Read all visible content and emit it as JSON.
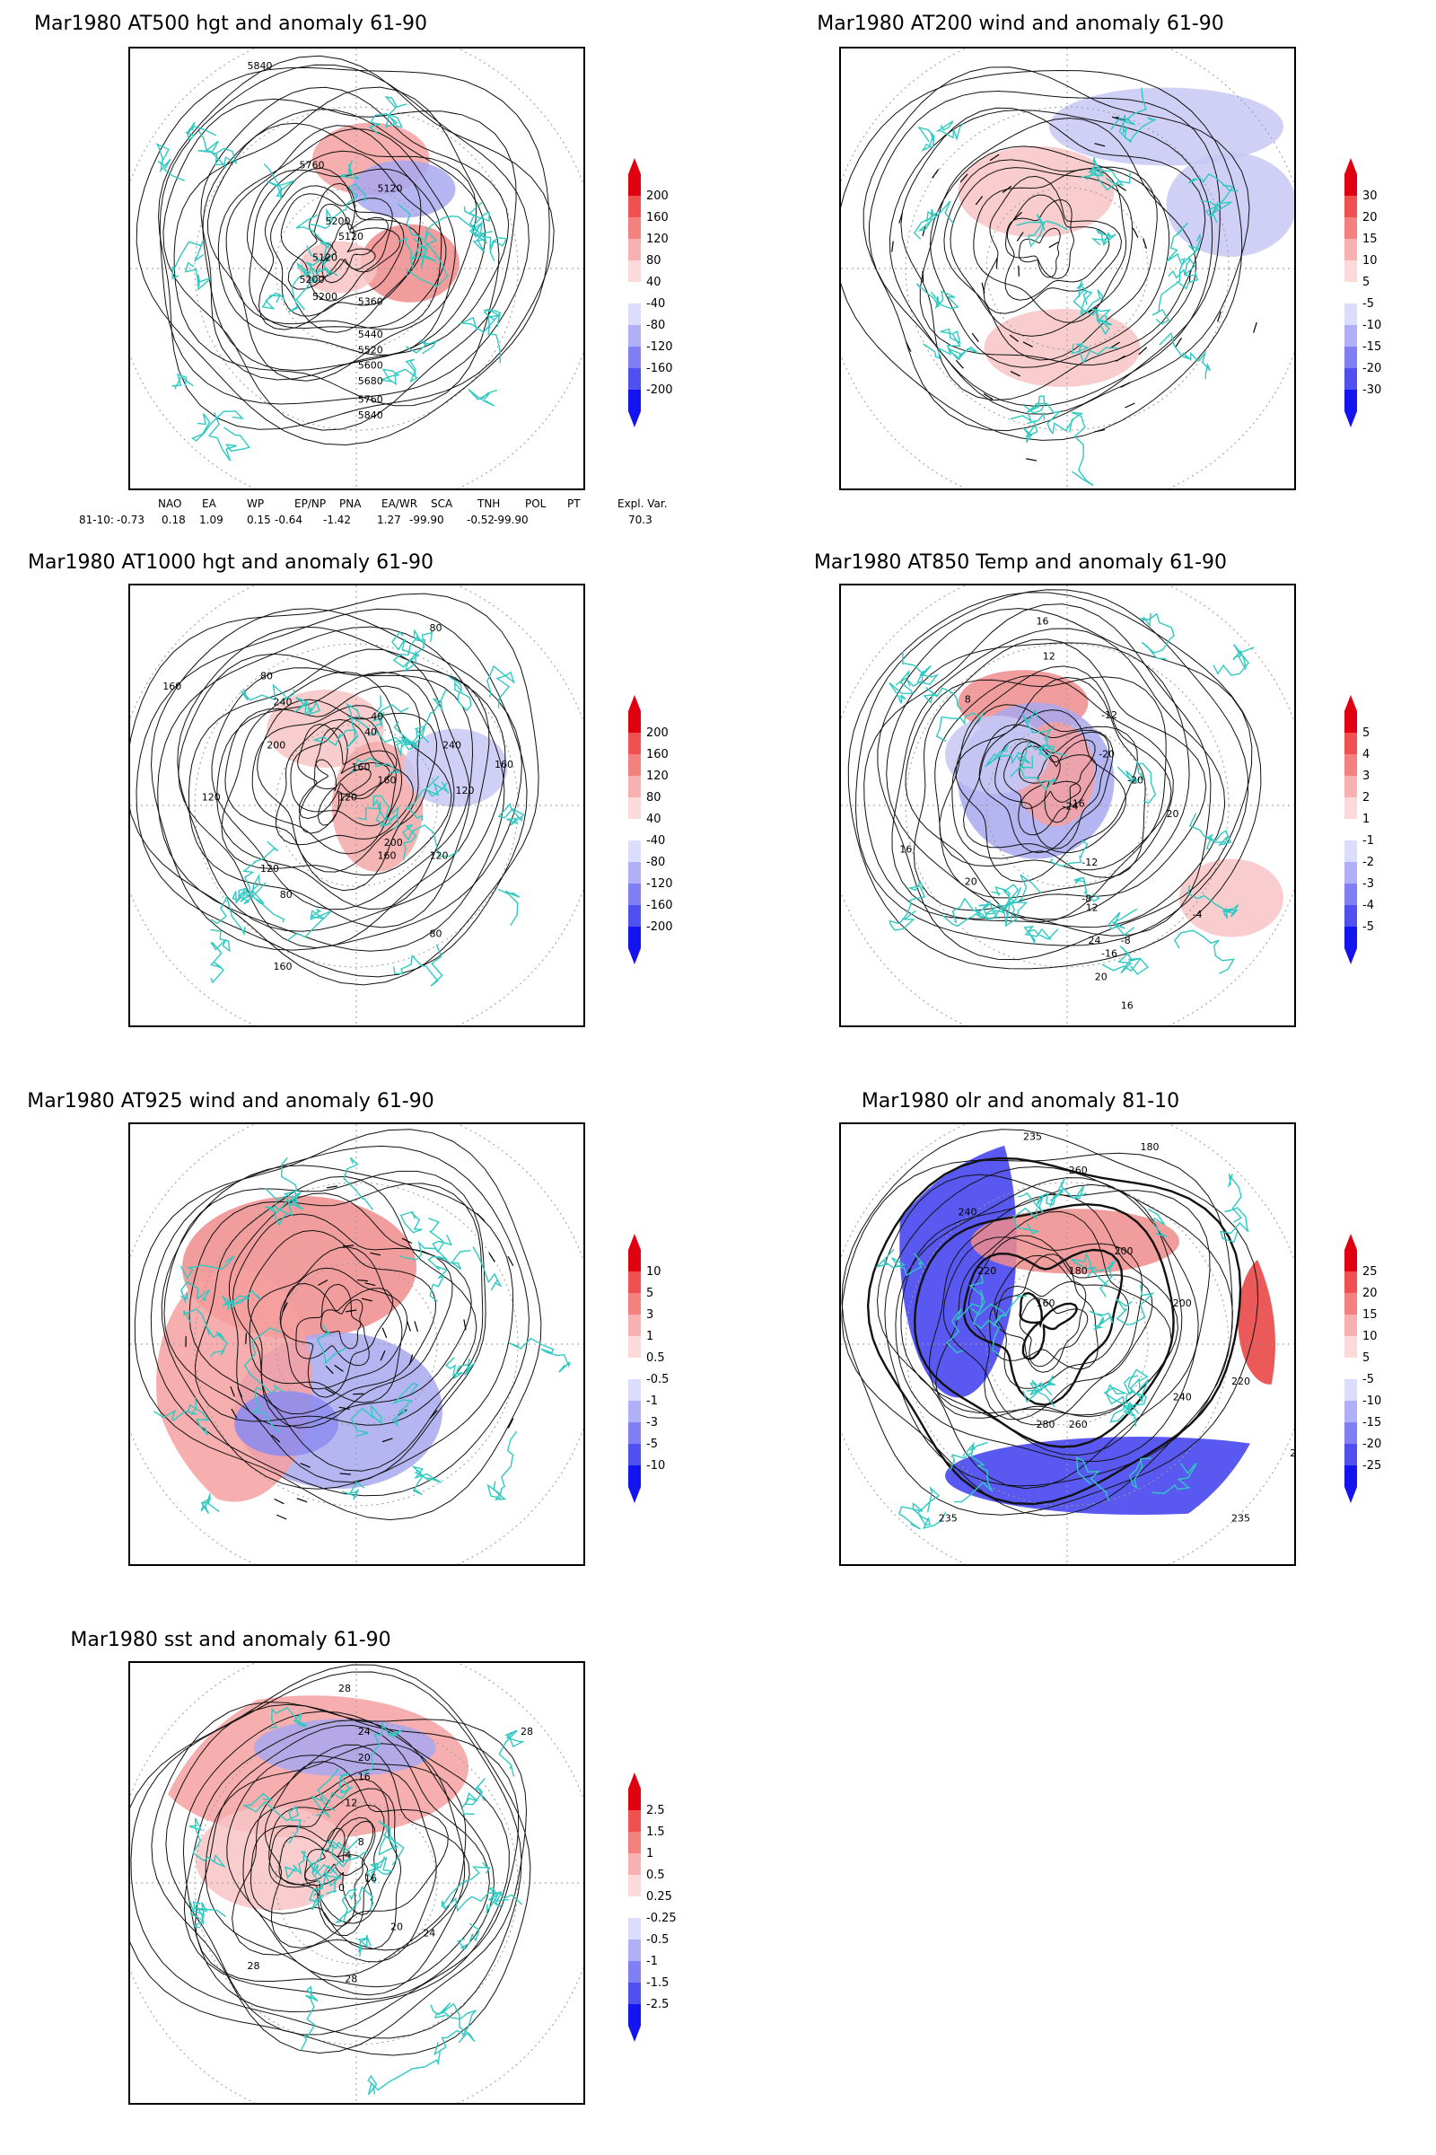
{
  "panels": [
    {
      "id": "p1",
      "title": "Mar1980 AT500 hgt and anomaly 61-90",
      "levels": [
        "200",
        "160",
        "120",
        "80",
        "40",
        "-40",
        "-80",
        "-120",
        "-160",
        "-200"
      ],
      "contours": [
        "5840",
        "5760",
        "5120",
        "5200",
        "5120",
        "5120",
        "5200",
        "5200",
        "5360",
        "5440",
        "5520",
        "5600",
        "5680",
        "5760",
        "5840"
      ],
      "blobs": [
        {
          "color": "#f6a0a0"
        },
        {
          "color": "#a8a8f0"
        },
        {
          "color": "#f08c8c"
        },
        {
          "color": "#f8c4c4"
        }
      ]
    },
    {
      "id": "p2",
      "title": "Mar1980 AT200 wind and anomaly 61-90",
      "levels": [
        "30",
        "20",
        "15",
        "10",
        "5",
        "-5",
        "-10",
        "-15",
        "-20",
        "-30"
      ],
      "contours": [],
      "blobs": [
        {
          "color": "#c8c8f4"
        },
        {
          "color": "#f8c4c4"
        },
        {
          "color": "#c8c8f4"
        },
        {
          "color": "#f8c4c4"
        }
      ]
    },
    {
      "id": "p3",
      "title": "Mar1980 AT1000 hgt and anomaly 61-90",
      "levels": [
        "200",
        "160",
        "120",
        "80",
        "40",
        "-40",
        "-80",
        "-120",
        "-160",
        "-200"
      ],
      "contours": [
        "80",
        "160",
        "80",
        "240",
        "200",
        "40",
        "40",
        "160",
        "120",
        "160",
        "240",
        "120",
        "160",
        "120",
        "200",
        "160",
        "120",
        "80",
        "80",
        "160",
        "120"
      ],
      "blobs": [
        {
          "color": "#f8c4c4"
        },
        {
          "color": "#f4a8a8"
        },
        {
          "color": "#c8c8f4"
        }
      ]
    },
    {
      "id": "p4",
      "title": "Mar1980 AT850 Temp and anomaly 61-90",
      "levels": [
        "5",
        "4",
        "3",
        "2",
        "1",
        "-1",
        "-2",
        "-3",
        "-4",
        "-5"
      ],
      "contours": [
        "16",
        "12",
        "8",
        "-12",
        "-20",
        "-24",
        "-16",
        "-20",
        "-12",
        "-8",
        "16",
        "12",
        "20",
        "20",
        "24",
        "20",
        "16",
        "-4",
        "-8",
        "-16"
      ],
      "blobs": [
        {
          "color": "#f08c8c"
        },
        {
          "color": "#a8a8f0"
        },
        {
          "color": "#f6a0a0"
        },
        {
          "color": "#f8c4c4"
        },
        {
          "color": "#c8c8f4"
        }
      ]
    },
    {
      "id": "p5",
      "title": "Mar1980 AT925 wind and anomaly 61-90",
      "levels": [
        "10",
        "5",
        "3",
        "1",
        "0.5",
        "-0.5",
        "-1",
        "-3",
        "-5",
        "-10"
      ],
      "contours": [],
      "blobs": [
        {
          "color": "#f08c8c"
        },
        {
          "color": "#a8a8f0"
        },
        {
          "color": "#f6a0a0"
        },
        {
          "color": "#8c8cf0"
        }
      ]
    },
    {
      "id": "p6",
      "title": "Mar1980 olr and anomaly 81-10",
      "levels": [
        "25",
        "20",
        "15",
        "10",
        "5",
        "-5",
        "-10",
        "-15",
        "-20",
        "-25"
      ],
      "contours": [
        "235",
        "180",
        "260",
        "240",
        "220",
        "200",
        "180",
        "160",
        "200",
        "220",
        "240",
        "260",
        "280",
        "235",
        "235",
        "235"
      ],
      "blobs": [
        {
          "color": "#3c3cf0"
        },
        {
          "color": "#f08c8c"
        },
        {
          "color": "#3c3cf0"
        },
        {
          "color": "#e83c3c"
        }
      ]
    },
    {
      "id": "p7",
      "title": "Mar1980 sst and anomaly 61-90",
      "levels": [
        "2.5",
        "1.5",
        "1",
        "0.5",
        "0.25",
        "-0.25",
        "-0.5",
        "-1",
        "-1.5",
        "-2.5"
      ],
      "contours": [
        "28",
        "24",
        "20",
        "16",
        "12",
        "8",
        "4",
        "0",
        "16",
        "20",
        "24",
        "28",
        "28",
        "28"
      ],
      "blobs": [
        {
          "color": "#f6a0a0"
        },
        {
          "color": "#f8c4c4"
        },
        {
          "color": "#a8a8f0"
        }
      ]
    }
  ],
  "index_table": {
    "headers": [
      "NAO",
      "EA",
      "WP",
      "EP/NP",
      "PNA",
      "EA/WR",
      "SCA",
      "TNH",
      "POL",
      "PT",
      "Expl. Var."
    ],
    "row_label": "81-10:",
    "values": [
      "-0.73",
      "0.18",
      "1.09",
      "0.15",
      "-0.64",
      "-1.42",
      "1.27",
      "-99.90",
      "-0.52",
      "-99.90",
      "70.3"
    ]
  },
  "colors": {
    "land_outline": "#2fc9c2",
    "red_levels": [
      "#e0000f",
      "#f05050",
      "#f48080",
      "#f8b0b0",
      "#fcdada"
    ],
    "blue_levels": [
      "#dcdcfc",
      "#b0b0f8",
      "#8080f4",
      "#5050f0",
      "#1414f0"
    ]
  }
}
